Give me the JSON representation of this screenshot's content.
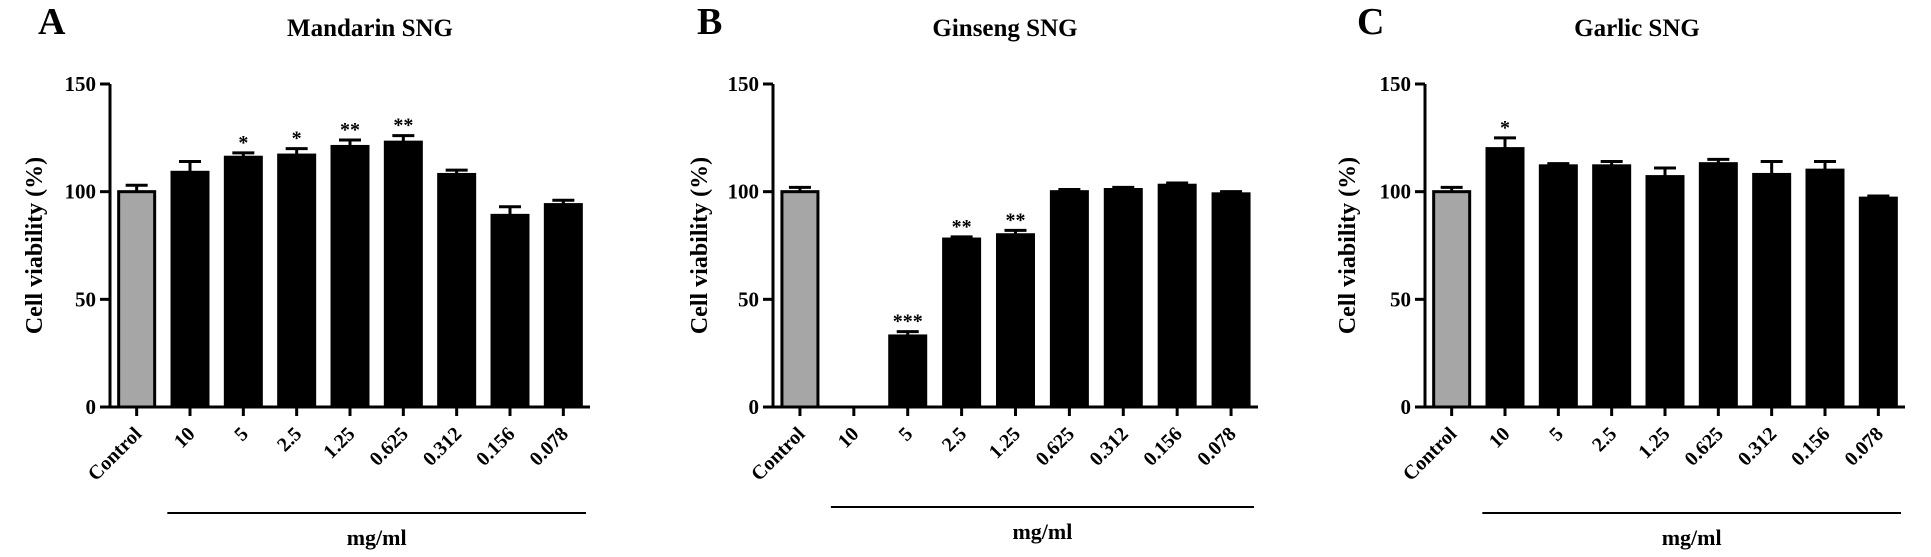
{
  "x_unit_label": "mg/ml",
  "chart_data": [
    {
      "panel_letter": "A",
      "type": "bar",
      "title": "Mandarin SNG",
      "ylabel": "Cell viability (%)",
      "xlabel": "mg/ml",
      "ylim": [
        0,
        150
      ],
      "yticks": [
        "0",
        "50",
        "100",
        "150"
      ],
      "categories": [
        "Control",
        "10",
        "5",
        "2.5",
        "1.25",
        "0.625",
        "0.312",
        "0.156",
        "0.078"
      ],
      "values": [
        100,
        109,
        116,
        117,
        121,
        123,
        108,
        89,
        94
      ],
      "errors": [
        3,
        5,
        2,
        3,
        3,
        3,
        2,
        4,
        2
      ],
      "significance": [
        "",
        "",
        "*",
        "*",
        "**",
        "**",
        "",
        "",
        ""
      ],
      "bar_colors": [
        "#a6a6a6",
        "#000000",
        "#000000",
        "#000000",
        "#000000",
        "#000000",
        "#000000",
        "#000000",
        "#000000"
      ],
      "grid": false
    },
    {
      "panel_letter": "B",
      "type": "bar",
      "title": "Ginseng SNG",
      "ylabel": "Cell viability (%)",
      "xlabel": "mg/ml",
      "ylim": [
        0,
        150
      ],
      "yticks": [
        "0",
        "50",
        "100",
        "150"
      ],
      "categories": [
        "Control",
        "10",
        "5",
        "2.5",
        "1.25",
        "0.625",
        "0.312",
        "0.156",
        "0.078"
      ],
      "values": [
        100,
        0,
        33,
        78,
        80,
        100,
        101,
        103,
        99
      ],
      "errors": [
        2,
        0,
        2,
        1,
        2,
        1,
        1,
        1,
        1
      ],
      "significance": [
        "",
        "",
        "***",
        "**",
        "**",
        "",
        "",
        "",
        ""
      ],
      "bar_colors": [
        "#a6a6a6",
        "#000000",
        "#000000",
        "#000000",
        "#000000",
        "#000000",
        "#000000",
        "#000000",
        "#000000"
      ],
      "grid": false
    },
    {
      "panel_letter": "C",
      "type": "bar",
      "title": "Garlic SNG",
      "ylabel": "Cell viability (%)",
      "xlabel": "mg/ml",
      "ylim": [
        0,
        150
      ],
      "yticks": [
        "0",
        "50",
        "100",
        "150"
      ],
      "categories": [
        "Control",
        "10",
        "5",
        "2.5",
        "1.25",
        "0.625",
        "0.312",
        "0.156",
        "0.078"
      ],
      "values": [
        100,
        120,
        112,
        112,
        107,
        113,
        108,
        110,
        97
      ],
      "errors": [
        2,
        5,
        1,
        2,
        4,
        2,
        6,
        4,
        1
      ],
      "significance": [
        "",
        "*",
        "",
        "",
        "",
        "",
        "",
        "",
        ""
      ],
      "bar_colors": [
        "#a6a6a6",
        "#000000",
        "#000000",
        "#000000",
        "#000000",
        "#000000",
        "#000000",
        "#000000",
        "#000000"
      ],
      "grid": false
    }
  ]
}
